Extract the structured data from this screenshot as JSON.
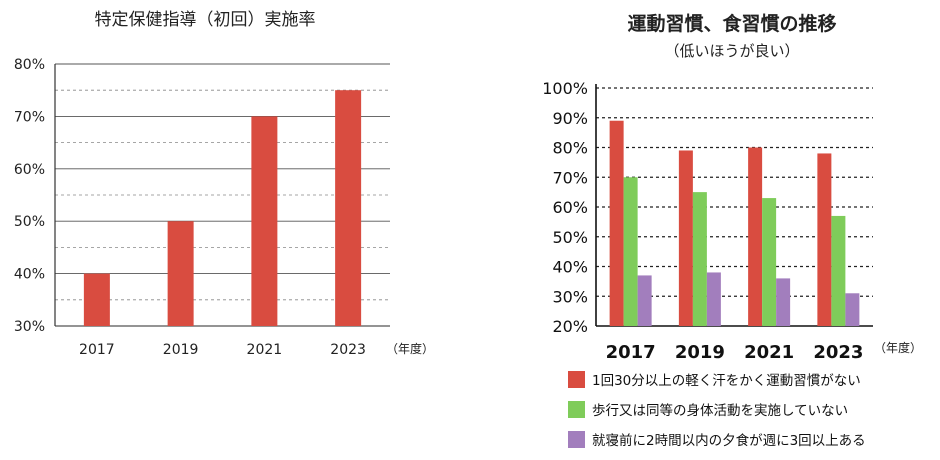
{
  "chart_data": [
    {
      "type": "bar",
      "title": "特定保健指導（初回）実施率",
      "categories": [
        "2017",
        "2019",
        "2021",
        "2023"
      ],
      "values": [
        40,
        50,
        70,
        75
      ],
      "ylim": [
        30,
        80
      ],
      "y_ticks": [
        "30%",
        "40%",
        "50%",
        "60%",
        "70%",
        "80%"
      ],
      "x_unit": "（年度）",
      "grid": true,
      "bar_color": "#d94c40"
    },
    {
      "type": "bar",
      "title": "運動習慣、食習慣の推移",
      "subtitle": "（低いほうが良い）",
      "categories": [
        "2017",
        "2019",
        "2021",
        "2023"
      ],
      "series": [
        {
          "name": "1回30分以上の軽く汗をかく運動習慣がない",
          "values": [
            89,
            79,
            80,
            78
          ],
          "color": "#d94c40"
        },
        {
          "name": "歩行又は同等の身体活動を実施していない",
          "values": [
            70,
            65,
            63,
            57
          ],
          "color": "#7fcc5a"
        },
        {
          "name": "就寝前に2時間以内の夕食が週に3回以上ある",
          "values": [
            37,
            38,
            36,
            31
          ],
          "color": "#a27ebd"
        }
      ],
      "ylim": [
        20,
        100
      ],
      "y_ticks": [
        "20%",
        "30%",
        "40%",
        "50%",
        "60%",
        "70%",
        "80%",
        "90%",
        "100%"
      ],
      "x_unit": "（年度）",
      "grid": true,
      "legend_position": "bottom"
    }
  ]
}
